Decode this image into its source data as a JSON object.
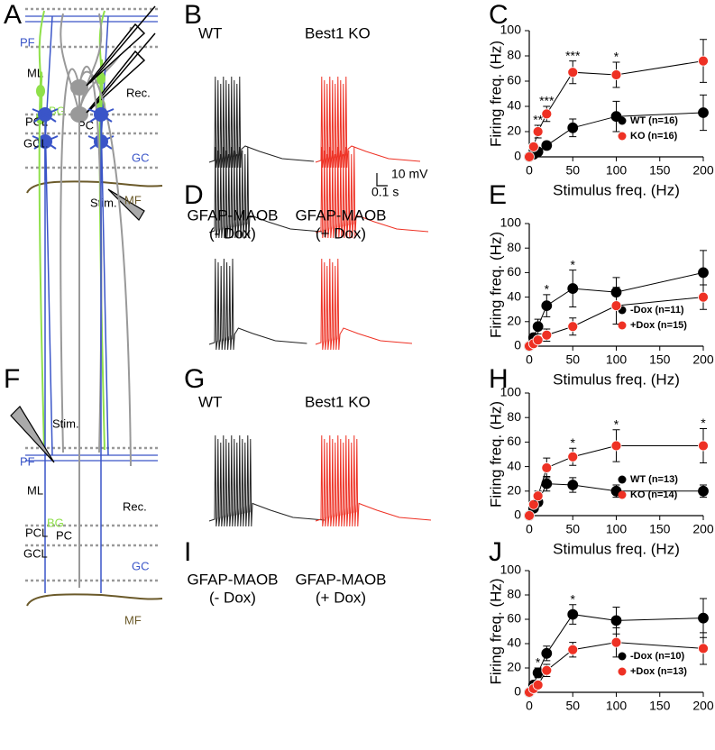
{
  "panel_labels": [
    "A",
    "B",
    "C",
    "D",
    "E",
    "F",
    "G",
    "H",
    "I",
    "J"
  ],
  "diagrams": [
    {
      "labels": [
        "PF",
        "ML",
        "BG",
        "PCL",
        "PC",
        "GCL",
        "GC",
        "MF",
        "Rec.",
        "Stim."
      ]
    },
    {
      "labels": [
        "PF",
        "ML",
        "BG",
        "PCL",
        "PC",
        "GCL",
        "GC",
        "MF",
        "Rec.",
        "Stim."
      ]
    }
  ],
  "traces": [
    {
      "labels": [
        "WT",
        "Best1 KO"
      ]
    },
    {
      "labels": [
        [
          "GFAP-MAOB",
          "(- Dox)"
        ],
        [
          "GFAP-MAOB",
          "(+ Dox)"
        ]
      ]
    },
    {
      "labels": [
        "WT",
        "Best1 KO"
      ]
    },
    {
      "labels": [
        [
          "GFAP-MAOB",
          "(- Dox)"
        ],
        [
          "GFAP-MAOB",
          "(+ Dox)"
        ]
      ]
    }
  ],
  "scale_bar": [
    "10 mV",
    "0.1 s"
  ],
  "chart_data": [
    {
      "type": "line",
      "xlabel": "Stimulus freq. (Hz)",
      "ylabel": "Firing freq. (Hz)",
      "x": [
        0,
        5,
        10,
        20,
        50,
        100,
        200
      ],
      "xlim": [
        0,
        200
      ],
      "xticks": [
        0,
        50,
        100,
        150,
        200
      ],
      "ylim": [
        0,
        100
      ],
      "yticks": [
        0,
        20,
        40,
        60,
        80,
        100
      ],
      "series": [
        {
          "name": "WT (n=16)",
          "color": "#000000",
          "values": [
            0,
            2,
            4,
            9,
            23,
            32,
            35
          ],
          "errors": [
            0,
            1,
            1,
            3,
            7,
            12,
            14
          ]
        },
        {
          "name": "KO (n=16)",
          "color": "#ee3124",
          "values": [
            0,
            8,
            20,
            34,
            67,
            65,
            76
          ],
          "errors": [
            0,
            3,
            5,
            6,
            9,
            10,
            17
          ]
        }
      ],
      "annotations": [
        {
          "x": 10,
          "text": "**"
        },
        {
          "x": 20,
          "text": "***"
        },
        {
          "x": 50,
          "text": "***"
        },
        {
          "x": 100,
          "text": "*"
        }
      ]
    },
    {
      "type": "line",
      "xlabel": "Stimulus freq. (Hz)",
      "ylabel": "Firing freq. (Hz)",
      "x": [
        0,
        5,
        10,
        20,
        50,
        100,
        200
      ],
      "xlim": [
        0,
        200
      ],
      "xticks": [
        0,
        50,
        100,
        150,
        200
      ],
      "ylim": [
        0,
        100
      ],
      "yticks": [
        0,
        20,
        40,
        60,
        80,
        100
      ],
      "series": [
        {
          "name": "-Dox (n=11)",
          "color": "#000000",
          "values": [
            0,
            7,
            16,
            33,
            47,
            44,
            60
          ],
          "errors": [
            0,
            2,
            6,
            9,
            15,
            12,
            18
          ]
        },
        {
          "name": "+Dox (n=15)",
          "color": "#ee3124",
          "values": [
            0,
            2,
            5,
            9,
            16,
            33,
            40
          ],
          "errors": [
            0,
            1,
            2,
            5,
            7,
            15,
            10
          ]
        }
      ],
      "annotations": [
        {
          "x": 20,
          "text": "*"
        },
        {
          "x": 50,
          "text": "*"
        }
      ]
    },
    {
      "type": "line",
      "xlabel": "Stimulus freq. (Hz)",
      "ylabel": "Firing freq. (Hz)",
      "x": [
        0,
        5,
        10,
        20,
        50,
        100,
        200
      ],
      "xlim": [
        0,
        200
      ],
      "xticks": [
        0,
        50,
        100,
        150,
        200
      ],
      "ylim": [
        0,
        100
      ],
      "yticks": [
        0,
        20,
        40,
        60,
        80,
        100
      ],
      "series": [
        {
          "name": "WT (n=13)",
          "color": "#000000",
          "values": [
            0,
            6,
            11,
            26,
            25,
            20,
            20
          ],
          "errors": [
            0,
            2,
            3,
            6,
            6,
            5,
            5
          ]
        },
        {
          "name": "KO (n=14)",
          "color": "#ee3124",
          "values": [
            0,
            9,
            16,
            39,
            48,
            57,
            57
          ],
          "errors": [
            0,
            3,
            4,
            8,
            7,
            13,
            14
          ]
        }
      ],
      "annotations": [
        {
          "x": 50,
          "text": "*"
        },
        {
          "x": 100,
          "text": "*"
        },
        {
          "x": 200,
          "text": "*"
        }
      ]
    },
    {
      "type": "line",
      "ylabel": "Firing freq. (Hz)",
      "x": [
        0,
        5,
        10,
        20,
        50,
        100,
        200
      ],
      "xlim": [
        0,
        200
      ],
      "xticks": [
        0,
        50,
        100,
        150,
        200
      ],
      "ylim": [
        0,
        100
      ],
      "yticks": [
        0,
        20,
        40,
        60,
        80,
        100
      ],
      "series": [
        {
          "name": "-Dox (n=10)",
          "color": "#000000",
          "values": [
            0,
            6,
            16,
            32,
            64,
            59,
            61
          ],
          "errors": [
            0,
            2,
            4,
            6,
            8,
            11,
            16
          ]
        },
        {
          "name": "+Dox (n=13)",
          "color": "#ee3124",
          "values": [
            0,
            3,
            6,
            18,
            35,
            41,
            36
          ],
          "errors": [
            0,
            1,
            2,
            5,
            6,
            12,
            13
          ]
        }
      ],
      "annotations": [
        {
          "x": 10,
          "text": "*"
        },
        {
          "x": 50,
          "text": "*"
        }
      ]
    }
  ]
}
